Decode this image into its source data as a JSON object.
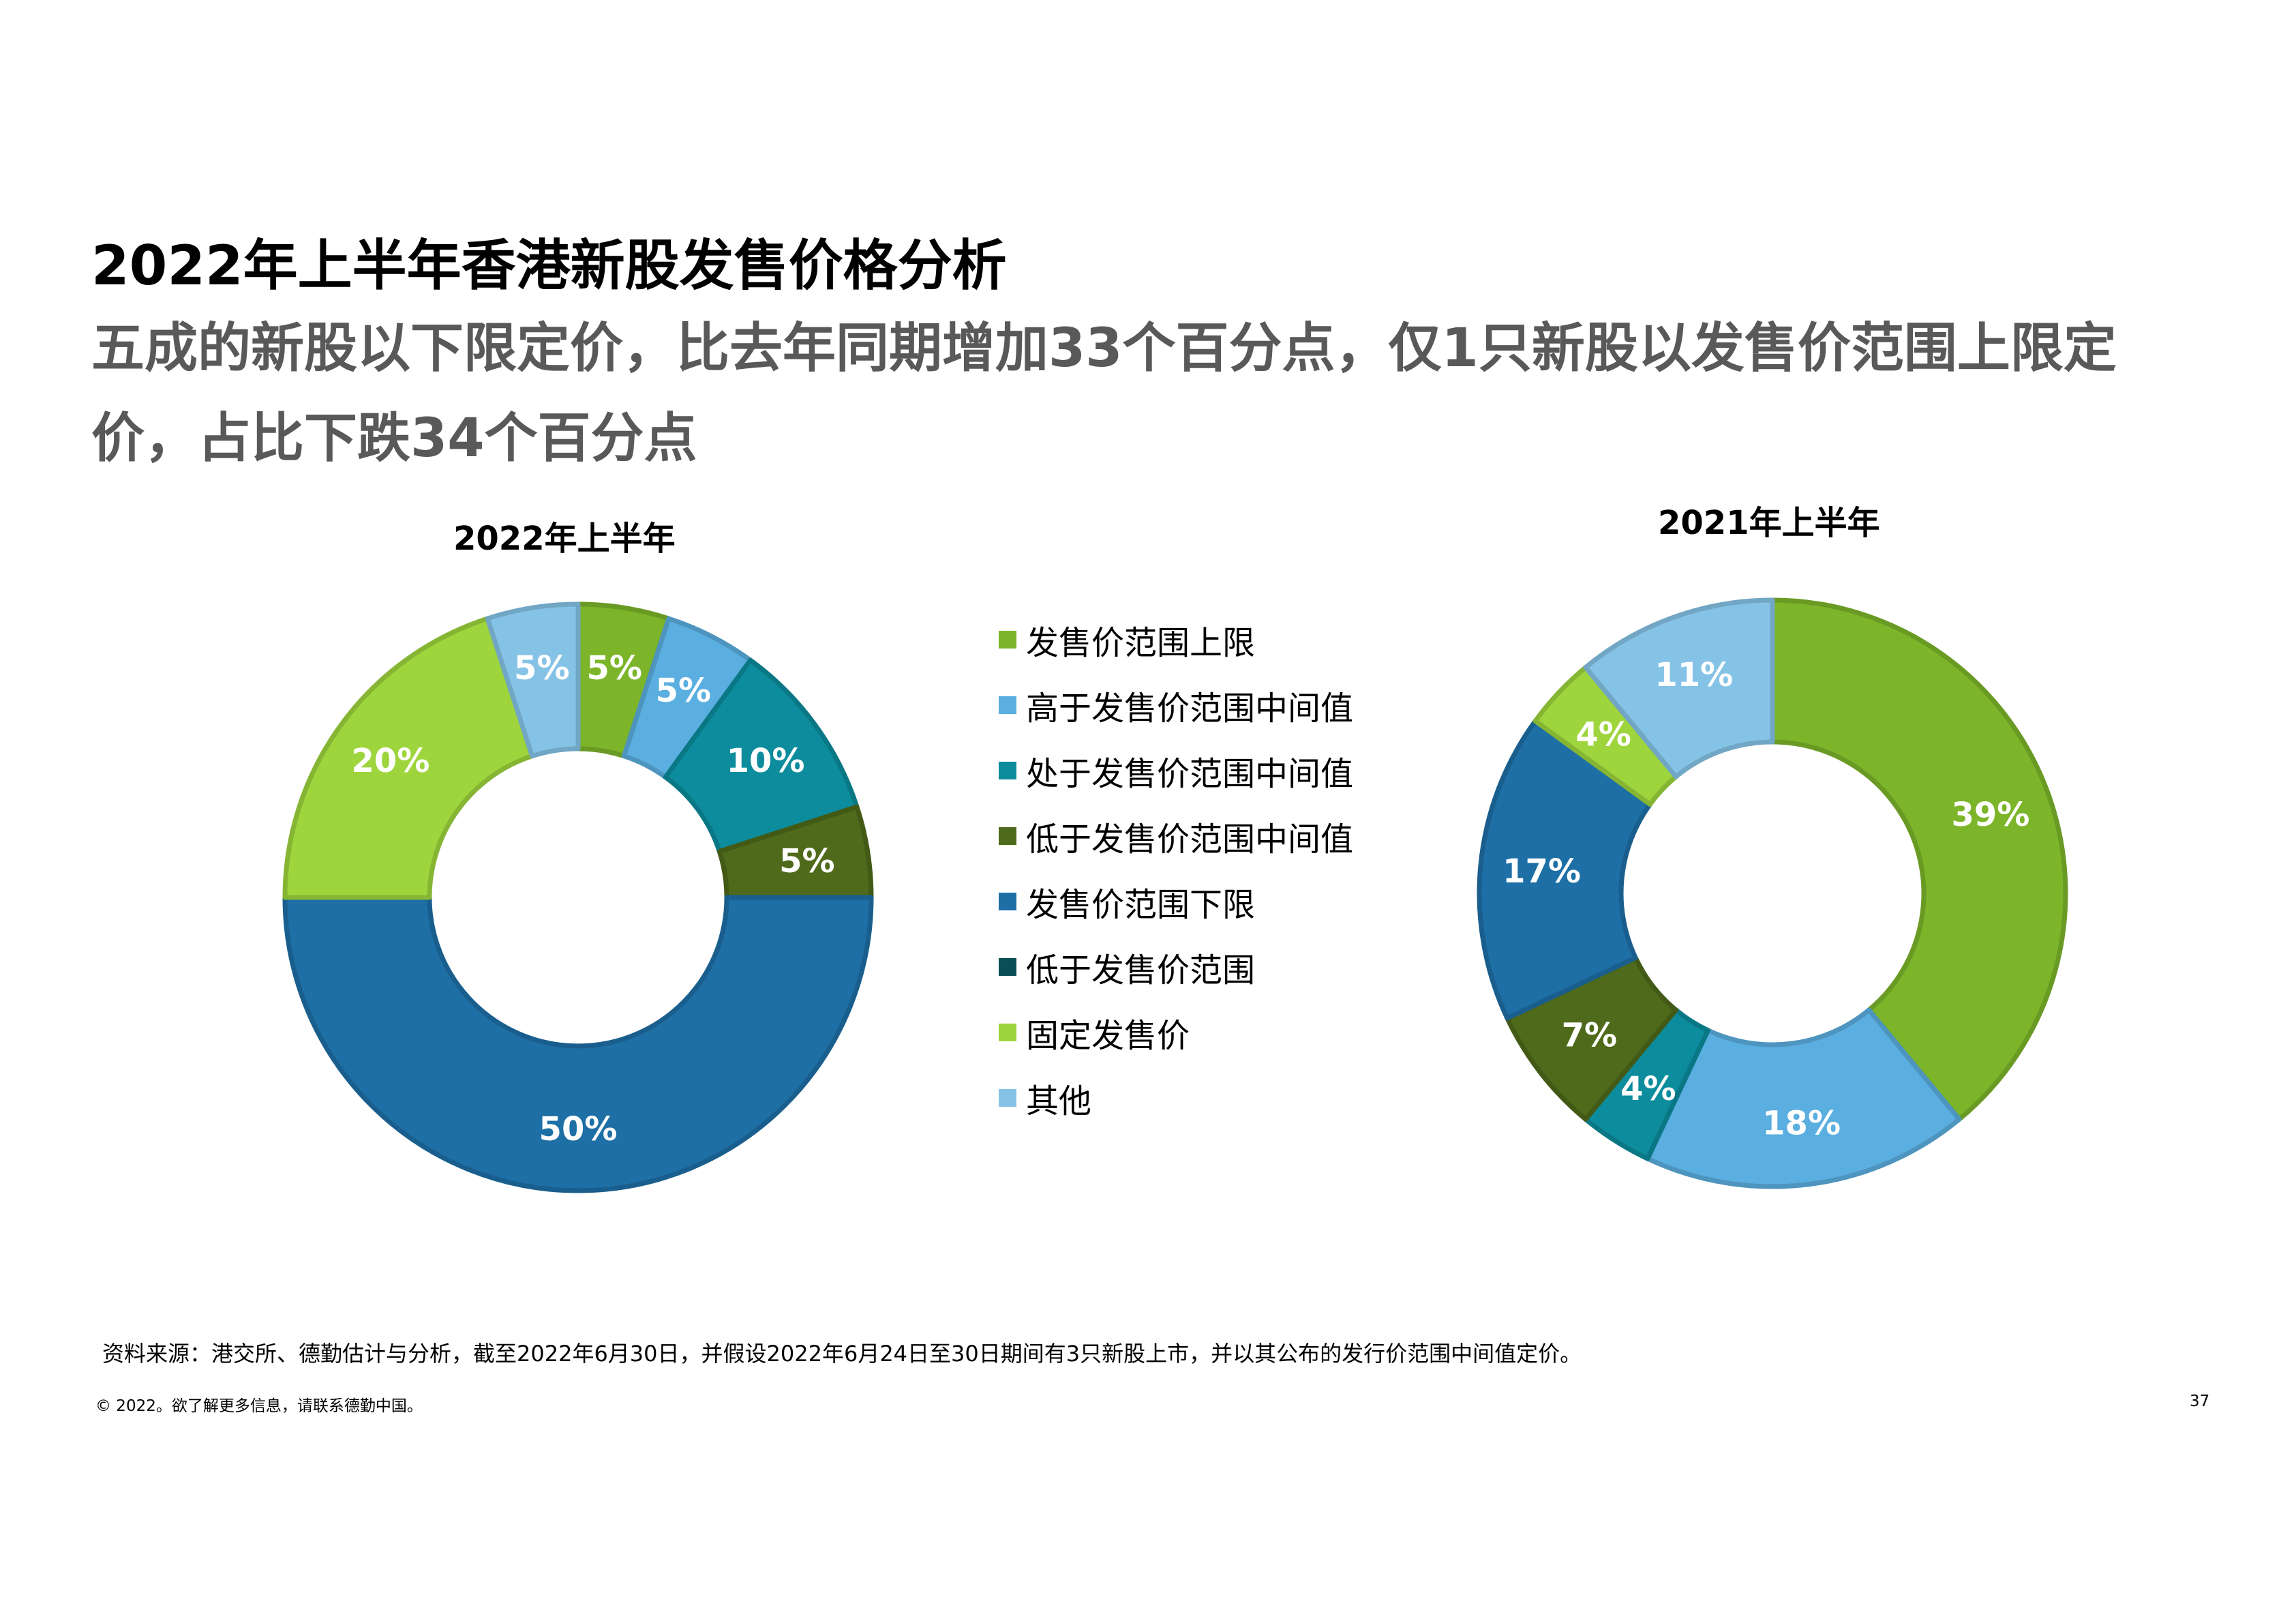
{
  "page": {
    "title": "2022年上半年香港新股发售价格分析",
    "subtitle": "五成的新股以下限定价，比去年同期增加33个百分点，仅1只新股以发售价范围上限定价，占比下跌34个百分点",
    "source": "资料来源：港交所、德勤估计与分析，截至2022年6月30日，并假设2022年6月24日至30日期间有3只新股上市，并以其公布的发行价范围中间值定价。",
    "copyright": "© 2022。欲了解更多信息，请联系德勤中国。",
    "page_number": "37"
  },
  "legend": [
    {
      "label": "发售价范围上限",
      "color": "#7cb529"
    },
    {
      "label": "高于发售价范围中间值",
      "color": "#5aaee0"
    },
    {
      "label": "处于发售价范围中间值",
      "color": "#0c8c9c"
    },
    {
      "label": "低于发售价范围中间值",
      "color": "#4e6a1a"
    },
    {
      "label": "发售价范围下限",
      "color": "#1d6fa6"
    },
    {
      "label": "低于发售价范围",
      "color": "#0a4f55"
    },
    {
      "label": "固定发售价",
      "color": "#9ed53d"
    },
    {
      "label": "其他",
      "color": "#85c3e6"
    }
  ],
  "chart_data": [
    {
      "type": "pie",
      "title": "2022年上半年",
      "series": [
        {
          "label": "发售价范围上限",
          "value": 5,
          "display": "5%",
          "color": "#7cb529"
        },
        {
          "label": "高于发售价范围中间值",
          "value": 5,
          "display": "5%",
          "color": "#5aaee0"
        },
        {
          "label": "处于发售价范围中间值",
          "value": 10,
          "display": "10%",
          "color": "#0c8c9c"
        },
        {
          "label": "低于发售价范围中间值",
          "value": 5,
          "display": "5%",
          "color": "#4e6a1a"
        },
        {
          "label": "发售价范围下限",
          "value": 50,
          "display": "50%",
          "color": "#1d6fa6"
        },
        {
          "label": "固定发售价",
          "value": 20,
          "display": "20%",
          "color": "#9ed53d"
        },
        {
          "label": "其他",
          "value": 5,
          "display": "5%",
          "color": "#85c3e6"
        }
      ]
    },
    {
      "type": "pie",
      "title": "2021年上半年",
      "series": [
        {
          "label": "发售价范围上限",
          "value": 39,
          "display": "39%",
          "color": "#7cb529"
        },
        {
          "label": "高于发售价范围中间值",
          "value": 18,
          "display": "18%",
          "color": "#5aaee0"
        },
        {
          "label": "处于发售价范围中间值",
          "value": 4,
          "display": "4%",
          "color": "#0c8c9c"
        },
        {
          "label": "低于发售价范围中间值",
          "value": 7,
          "display": "7%",
          "color": "#4e6a1a"
        },
        {
          "label": "发售价范围下限",
          "value": 17,
          "display": "17%",
          "color": "#1d6fa6"
        },
        {
          "label": "固定发售价",
          "value": 4,
          "display": "4%",
          "color": "#9ed53d"
        },
        {
          "label": "其他",
          "value": 11,
          "display": "11%",
          "color": "#85c3e6"
        }
      ]
    }
  ]
}
